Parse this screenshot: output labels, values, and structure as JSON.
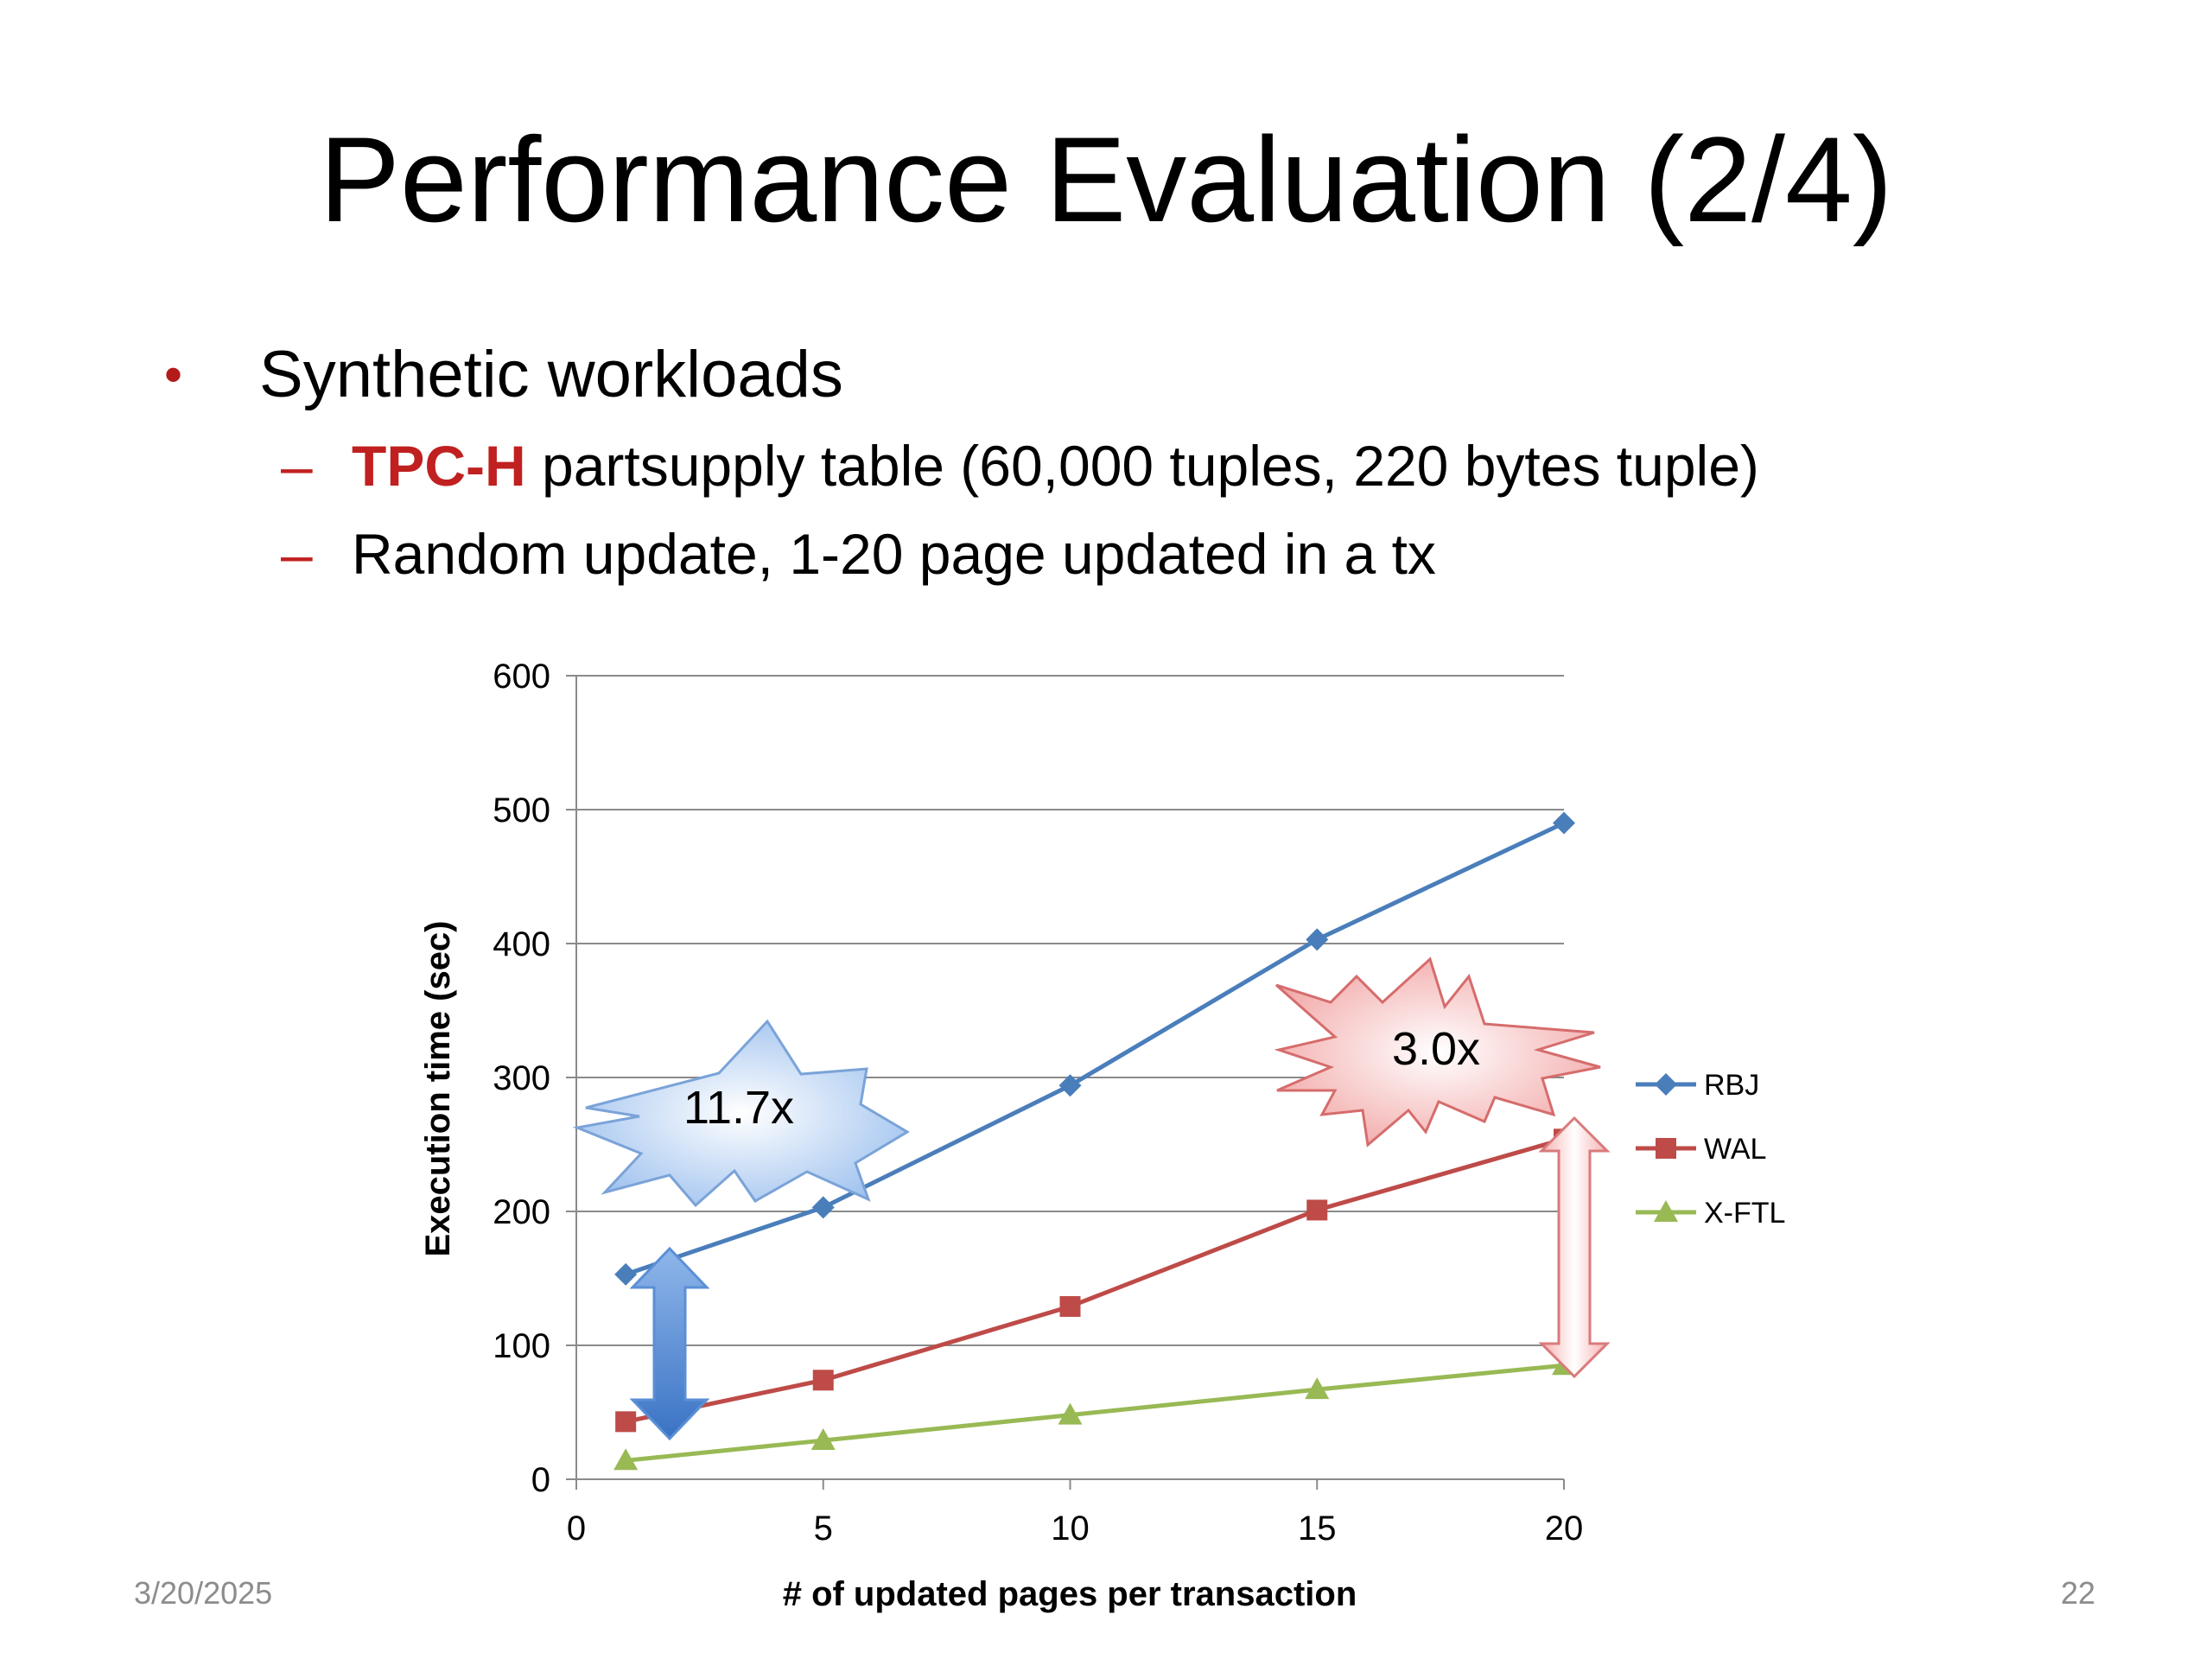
{
  "slide": {
    "title": "Performance Evaluation (2/4)",
    "bullet": "Synthetic workloads",
    "sub1_highlight": "TPC-H",
    "sub1_rest": " partsupply table (60,000 tuples, 220 bytes tuple)",
    "sub2": "Random update, 1-20 page updated in a tx",
    "date": "3/20/2025",
    "page_number": "22",
    "accent_color": "#c0201f"
  },
  "chart_data": {
    "type": "line",
    "xlabel": "# of updated pages per transaction",
    "ylabel": "Execution time (sec)",
    "xlim": [
      0,
      20
    ],
    "ylim": [
      0,
      600
    ],
    "x_ticks": [
      0,
      5,
      10,
      15,
      20
    ],
    "y_ticks": [
      0,
      100,
      200,
      300,
      400,
      500,
      600
    ],
    "grid": "horizontal",
    "legend_position": "right",
    "x": [
      1,
      5,
      10,
      15,
      20
    ],
    "series": [
      {
        "name": "RBJ",
        "color": "#4a7ebb",
        "marker": "diamond",
        "values": [
          153,
          203,
          294,
          403,
          490
        ]
      },
      {
        "name": "WAL",
        "color": "#be4b48",
        "marker": "square",
        "values": [
          43,
          74,
          129,
          201,
          254
        ]
      },
      {
        "name": "X-FTL",
        "color": "#98b954",
        "marker": "triangle",
        "values": [
          14,
          29,
          48,
          67,
          85
        ]
      }
    ],
    "annotations": [
      {
        "text": "11.7x",
        "color": "blue"
      },
      {
        "text": "3.0x",
        "color": "red"
      }
    ]
  }
}
